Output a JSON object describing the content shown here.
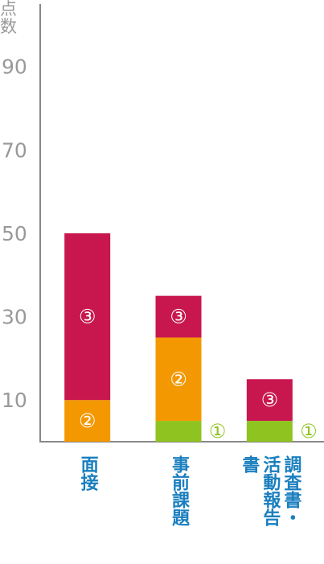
{
  "chart_data": {
    "type": "stacked_bar",
    "y_label": "点数",
    "categories": [
      "面接",
      "事前課題",
      "調査書・活動報告書"
    ],
    "series": [
      {
        "name": "①",
        "color": "#8fc31f",
        "values": [
          0,
          5,
          5
        ]
      },
      {
        "name": "②",
        "color": "#f39800",
        "values": [
          10,
          20,
          0
        ]
      },
      {
        "name": "③",
        "color": "#c8174f",
        "values": [
          40,
          10,
          10
        ]
      }
    ],
    "ylim": [
      0,
      105
    ],
    "yticks": [
      10,
      30,
      50,
      70,
      90
    ],
    "grid": false
  }
}
